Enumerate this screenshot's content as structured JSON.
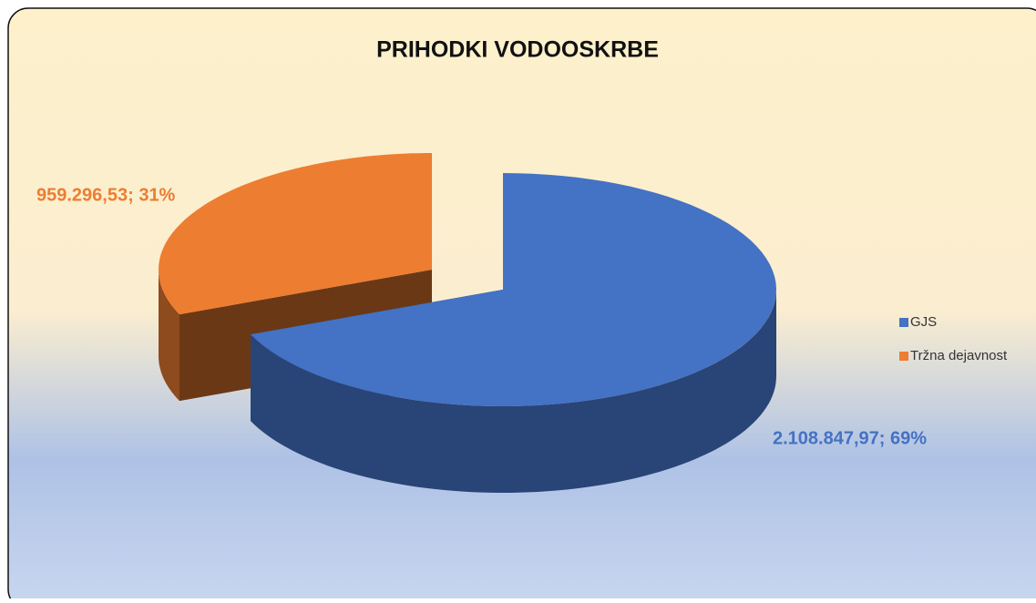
{
  "chart_data": {
    "type": "pie",
    "title": "PRIHODKI VODOOSKRBE",
    "categories": [
      "GJS",
      "Tržna dejavnost"
    ],
    "values": [
      2108847.97,
      959296.53
    ],
    "value_labels": [
      "2.108.847,97; 69%",
      "959.296,53; 31%"
    ],
    "colors": [
      "#4472c4",
      "#ed7d31"
    ],
    "legend": "right"
  }
}
